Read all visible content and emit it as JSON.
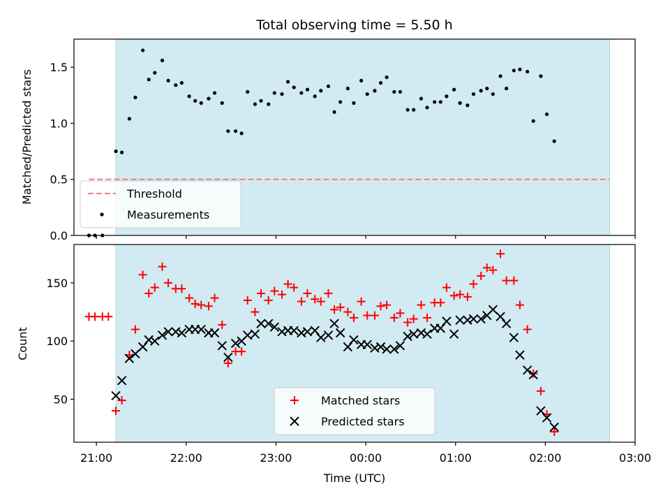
{
  "chart_data": [
    {
      "type": "scatter",
      "title": "Total observing time = 5.50 h",
      "xlabel": "",
      "ylabel": "Matched/Predicted stars",
      "xlim": [
        "20:45",
        "03:00"
      ],
      "ylim": [
        0,
        1.75
      ],
      "yticks": [
        "0.0",
        "0.5",
        "1.0",
        "1.5"
      ],
      "shaded_interval": [
        "21:13",
        "02:43"
      ],
      "shade_color": "#add8e6",
      "threshold": {
        "name": "Threshold",
        "value": 0.5,
        "x_range": [
          "20:55",
          "02:43"
        ],
        "color": "#f08080",
        "style": "dashed"
      },
      "series": [
        {
          "name": "Measurements",
          "color": "#000000",
          "marker": "dot",
          "points": [
            [
              "20:55",
              0.0
            ],
            [
              "20:59",
              0.0
            ],
            [
              "21:04",
              0.0
            ],
            [
              "21:13",
              0.75
            ],
            [
              "21:17",
              0.74
            ],
            [
              "21:22",
              1.04
            ],
            [
              "21:26",
              1.23
            ],
            [
              "21:31",
              1.65
            ],
            [
              "21:35",
              1.39
            ],
            [
              "21:39",
              1.45
            ],
            [
              "21:44",
              1.56
            ],
            [
              "21:48",
              1.38
            ],
            [
              "21:53",
              1.34
            ],
            [
              "21:57",
              1.36
            ],
            [
              "22:02",
              1.24
            ],
            [
              "22:06",
              1.2
            ],
            [
              "22:10",
              1.18
            ],
            [
              "22:15",
              1.22
            ],
            [
              "22:19",
              1.27
            ],
            [
              "22:24",
              1.18
            ],
            [
              "22:28",
              0.93
            ],
            [
              "22:33",
              0.93
            ],
            [
              "22:37",
              0.91
            ],
            [
              "22:41",
              1.28
            ],
            [
              "22:46",
              1.17
            ],
            [
              "22:50",
              1.2
            ],
            [
              "22:55",
              1.17
            ],
            [
              "22:59",
              1.27
            ],
            [
              "23:04",
              1.26
            ],
            [
              "23:08",
              1.37
            ],
            [
              "23:12",
              1.32
            ],
            [
              "23:17",
              1.27
            ],
            [
              "23:21",
              1.3
            ],
            [
              "23:26",
              1.24
            ],
            [
              "23:30",
              1.29
            ],
            [
              "23:35",
              1.33
            ],
            [
              "23:39",
              1.1
            ],
            [
              "23:43",
              1.19
            ],
            [
              "23:48",
              1.31
            ],
            [
              "23:52",
              1.18
            ],
            [
              "23:57",
              1.38
            ],
            [
              "00:01",
              1.26
            ],
            [
              "00:06",
              1.29
            ],
            [
              "00:10",
              1.36
            ],
            [
              "00:14",
              1.41
            ],
            [
              "00:19",
              1.28
            ],
            [
              "00:23",
              1.28
            ],
            [
              "00:28",
              1.12
            ],
            [
              "00:32",
              1.12
            ],
            [
              "00:37",
              1.22
            ],
            [
              "00:41",
              1.14
            ],
            [
              "00:46",
              1.19
            ],
            [
              "00:50",
              1.19
            ],
            [
              "00:54",
              1.24
            ],
            [
              "00:59",
              1.3
            ],
            [
              "01:03",
              1.18
            ],
            [
              "01:08",
              1.16
            ],
            [
              "01:12",
              1.26
            ],
            [
              "01:17",
              1.29
            ],
            [
              "01:21",
              1.31
            ],
            [
              "01:25",
              1.26
            ],
            [
              "01:30",
              1.42
            ],
            [
              "01:34",
              1.31
            ],
            [
              "01:39",
              1.47
            ],
            [
              "01:43",
              1.48
            ],
            [
              "01:48",
              1.46
            ],
            [
              "01:52",
              1.02
            ],
            [
              "01:57",
              1.42
            ],
            [
              "02:01",
              1.08
            ],
            [
              "02:06",
              0.84
            ]
          ]
        }
      ],
      "legend": {
        "location": "lower-left",
        "entries": [
          "Threshold",
          "Measurements"
        ]
      }
    },
    {
      "type": "scatter",
      "title": "",
      "xlabel": "Time (UTC)",
      "ylabel": "Count",
      "xlim": [
        "20:45",
        "03:00"
      ],
      "ylim": [
        13,
        183
      ],
      "xticks": [
        "21:00",
        "22:00",
        "23:00",
        "00:00",
        "01:00",
        "02:00",
        "03:00"
      ],
      "yticks": [
        "50",
        "100",
        "150"
      ],
      "shaded_interval": [
        "21:13",
        "02:43"
      ],
      "shade_color": "#add8e6",
      "series": [
        {
          "name": "Matched stars",
          "color": "#ff0000",
          "marker": "plus",
          "points": [
            [
              "20:55",
              121
            ],
            [
              "20:59",
              121
            ],
            [
              "21:04",
              121
            ],
            [
              "21:08",
              121
            ],
            [
              "21:13",
              40
            ],
            [
              "21:17",
              49
            ],
            [
              "21:22",
              88
            ],
            [
              "21:26",
              110
            ],
            [
              "21:31",
              157
            ],
            [
              "21:35",
              141
            ],
            [
              "21:39",
              146
            ],
            [
              "21:44",
              164
            ],
            [
              "21:48",
              150
            ],
            [
              "21:53",
              145
            ],
            [
              "21:57",
              145
            ],
            [
              "22:02",
              137
            ],
            [
              "22:06",
              132
            ],
            [
              "22:10",
              131
            ],
            [
              "22:15",
              130
            ],
            [
              "22:19",
              137
            ],
            [
              "22:24",
              114
            ],
            [
              "22:28",
              81
            ],
            [
              "22:33",
              91
            ],
            [
              "22:37",
              91
            ],
            [
              "22:41",
              135
            ],
            [
              "22:46",
              125
            ],
            [
              "22:50",
              141
            ],
            [
              "22:55",
              135
            ],
            [
              "22:59",
              143
            ],
            [
              "23:04",
              140
            ],
            [
              "23:08",
              149
            ],
            [
              "23:12",
              146
            ],
            [
              "23:17",
              134
            ],
            [
              "23:21",
              141
            ],
            [
              "23:26",
              136
            ],
            [
              "23:30",
              134
            ],
            [
              "23:35",
              141
            ],
            [
              "23:39",
              127
            ],
            [
              "23:43",
              129
            ],
            [
              "23:48",
              125
            ],
            [
              "23:52",
              120
            ],
            [
              "23:57",
              134
            ],
            [
              "00:01",
              122
            ],
            [
              "00:06",
              122
            ],
            [
              "00:10",
              130
            ],
            [
              "00:14",
              131
            ],
            [
              "00:19",
              120
            ],
            [
              "00:23",
              124
            ],
            [
              "00:28",
              116
            ],
            [
              "00:32",
              119
            ],
            [
              "00:37",
              131
            ],
            [
              "00:41",
              120
            ],
            [
              "00:46",
              133
            ],
            [
              "00:50",
              133
            ],
            [
              "00:54",
              146
            ],
            [
              "00:59",
              139
            ],
            [
              "01:03",
              140
            ],
            [
              "01:08",
              138
            ],
            [
              "01:12",
              149
            ],
            [
              "01:17",
              156
            ],
            [
              "01:21",
              163
            ],
            [
              "01:25",
              161
            ],
            [
              "01:30",
              175
            ],
            [
              "01:34",
              152
            ],
            [
              "01:39",
              152
            ],
            [
              "01:43",
              131
            ],
            [
              "01:48",
              110
            ],
            [
              "01:52",
              72
            ],
            [
              "01:57",
              57
            ],
            [
              "02:01",
              37
            ],
            [
              "02:06",
              22
            ]
          ]
        },
        {
          "name": "Predicted stars",
          "color": "#000000",
          "marker": "x",
          "points": [
            [
              "21:13",
              53
            ],
            [
              "21:17",
              66
            ],
            [
              "21:22",
              85
            ],
            [
              "21:26",
              89
            ],
            [
              "21:31",
              95
            ],
            [
              "21:35",
              101
            ],
            [
              "21:39",
              100
            ],
            [
              "21:44",
              105
            ],
            [
              "21:48",
              108
            ],
            [
              "21:53",
              108
            ],
            [
              "21:57",
              107
            ],
            [
              "22:02",
              110
            ],
            [
              "22:06",
              110
            ],
            [
              "22:10",
              110
            ],
            [
              "22:15",
              107
            ],
            [
              "22:19",
              107
            ],
            [
              "22:24",
              96
            ],
            [
              "22:28",
              86
            ],
            [
              "22:33",
              98
            ],
            [
              "22:37",
              100
            ],
            [
              "22:41",
              105
            ],
            [
              "22:46",
              106
            ],
            [
              "22:50",
              115
            ],
            [
              "22:55",
              115
            ],
            [
              "22:59",
              112
            ],
            [
              "23:04",
              108
            ],
            [
              "23:08",
              109
            ],
            [
              "23:12",
              109
            ],
            [
              "23:17",
              107
            ],
            [
              "23:21",
              108
            ],
            [
              "23:26",
              109
            ],
            [
              "23:30",
              103
            ],
            [
              "23:35",
              105
            ],
            [
              "23:39",
              115
            ],
            [
              "23:43",
              107
            ],
            [
              "23:48",
              95
            ],
            [
              "23:52",
              101
            ],
            [
              "23:57",
              97
            ],
            [
              "00:01",
              97
            ],
            [
              "00:06",
              94
            ],
            [
              "00:10",
              95
            ],
            [
              "00:14",
              93
            ],
            [
              "00:19",
              93
            ],
            [
              "00:23",
              96
            ],
            [
              "00:28",
              104
            ],
            [
              "00:32",
              106
            ],
            [
              "00:37",
              107
            ],
            [
              "00:41",
              106
            ],
            [
              "00:46",
              111
            ],
            [
              "00:50",
              111
            ],
            [
              "00:54",
              117
            ],
            [
              "00:59",
              106
            ],
            [
              "01:03",
              118
            ],
            [
              "01:08",
              118
            ],
            [
              "01:12",
              119
            ],
            [
              "01:17",
              119
            ],
            [
              "01:21",
              122
            ],
            [
              "01:25",
              127
            ],
            [
              "01:30",
              121
            ],
            [
              "01:34",
              115
            ],
            [
              "01:39",
              103
            ],
            [
              "01:43",
              88
            ],
            [
              "01:48",
              75
            ],
            [
              "01:52",
              71
            ],
            [
              "01:57",
              40
            ],
            [
              "02:01",
              34
            ],
            [
              "02:06",
              26
            ]
          ]
        }
      ],
      "legend": {
        "location": "lower-center",
        "entries": [
          "Matched stars",
          "Predicted stars"
        ]
      }
    }
  ]
}
